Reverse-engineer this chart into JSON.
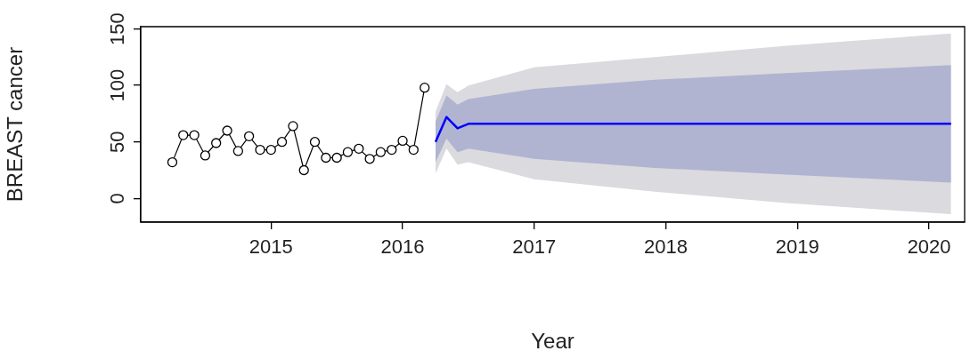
{
  "chart_data": {
    "type": "line",
    "xlabel": "Year",
    "ylabel": "BREAST cancer",
    "xlim": [
      2014.01,
      2020.27
    ],
    "xticks": [
      2015,
      2016,
      2017,
      2018,
      2019,
      2020
    ],
    "ylim": [
      -21,
      152
    ],
    "yticks": [
      0,
      50,
      100,
      150
    ],
    "grid": false,
    "legend": false,
    "line_style": "solid",
    "series": [
      {
        "type": "area",
        "color": "#dadadf",
        "x": [
          2016.25,
          2016.333,
          2016.417,
          2016.5,
          2017.0,
          2017.917,
          2018.917,
          2020.167
        ],
        "values": [
          null,
          null,
          null,
          null,
          null,
          null,
          null,
          null
        ],
        "lower": [
          22,
          44,
          30,
          32,
          17,
          6,
          -4,
          -14
        ],
        "upper": [
          77,
          101,
          94,
          100,
          116,
          125,
          135,
          146
        ]
      },
      {
        "type": "area",
        "color": "#b0b4d0",
        "x": [
          2016.25,
          2016.333,
          2016.417,
          2016.5,
          2017.0,
          2017.917,
          2018.917,
          2020.167
        ],
        "values": [
          null,
          null,
          null,
          null,
          null,
          null,
          null,
          null
        ],
        "lower": [
          32,
          53,
          41,
          44,
          35,
          27,
          21,
          14
        ],
        "upper": [
          68,
          91,
          83,
          88,
          97,
          105,
          111,
          118
        ]
      },
      {
        "type": "line",
        "color": "#000000",
        "marker": "circle",
        "x": [
          2014.25,
          2014.333,
          2014.417,
          2014.5,
          2014.583,
          2014.667,
          2014.75,
          2014.833,
          2014.917,
          2015.0,
          2015.083,
          2015.167,
          2015.25,
          2015.333,
          2015.417,
          2015.5,
          2015.583,
          2015.667,
          2015.75,
          2015.833,
          2015.917,
          2016.0,
          2016.083,
          2016.167
        ],
        "values": [
          32,
          56,
          56,
          38,
          49,
          60,
          42,
          55,
          43,
          43,
          50,
          64,
          25,
          50,
          36,
          36,
          41,
          44,
          35,
          41,
          43,
          51,
          43,
          98
        ]
      },
      {
        "type": "line",
        "color": "#0000ff",
        "marker": "none",
        "x": [
          2016.25,
          2016.333,
          2016.417,
          2016.5,
          2017.0,
          2017.917,
          2018.917,
          2020.167
        ],
        "values": [
          50,
          72,
          62,
          66,
          66,
          66,
          66,
          66
        ]
      }
    ]
  }
}
